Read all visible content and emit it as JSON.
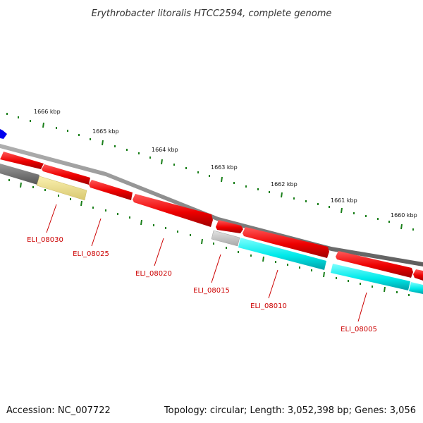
{
  "title": "Erythrobacter litoralis HTCC2594, complete genome",
  "footer": {
    "accession": "Accession: NC_007722",
    "summary": "Topology: circular; Length: 3,052,398 bp; Genes: 3,056"
  },
  "scale_labels": [
    "1666 kbp",
    "1665 kbp",
    "1664 kbp",
    "1663 kbp",
    "1662 kbp",
    "1661 kbp",
    "1660 kbp"
  ],
  "locus_tags": [
    "ELI_08030",
    "ELI_08025",
    "ELI_08020",
    "ELI_08015",
    "ELI_08010",
    "ELI_08005"
  ],
  "colors": {
    "cds_forward": "#ff0000",
    "cds_other": "#00ffff",
    "gene_gray": "#888888",
    "gene_light_gray": "#c8c8c8",
    "gene_yellow": "#f3e58e",
    "marker_blue": "#0000ff",
    "ticks": "#1a7f1a",
    "backbone": "#808080",
    "label_text": "#cc0000"
  }
}
